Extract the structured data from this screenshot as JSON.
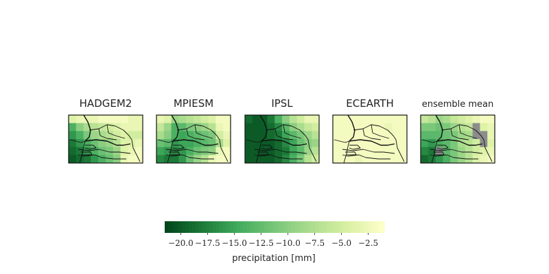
{
  "chart_data": {
    "type": "heatmap",
    "panels": [
      {
        "title": "HADGEM2",
        "grid": [
          [
            -4,
            -3,
            -3,
            -3,
            -2,
            -2,
            -2,
            -2,
            -3,
            -3
          ],
          [
            -14,
            -10,
            -8,
            -7,
            -6,
            -5,
            -4,
            -3,
            -3,
            -3
          ],
          [
            -16,
            -14,
            -11,
            -9,
            -8,
            -7,
            -5,
            -4,
            -5,
            -5
          ],
          [
            -18,
            -16,
            -14,
            -12,
            -10,
            -9,
            -7,
            -4,
            -4,
            -3
          ],
          [
            -19,
            -18,
            -16,
            -14,
            -12,
            -11,
            -9,
            -4,
            -3,
            -2
          ],
          [
            -20,
            -19,
            -18,
            -16,
            -14,
            -12,
            -10,
            -3,
            -2,
            -2
          ]
        ]
      },
      {
        "title": "MPIESM",
        "grid": [
          [
            -3,
            -4,
            -9,
            -8,
            -7,
            -6,
            -5,
            -4,
            -2,
            -2
          ],
          [
            -6,
            -9,
            -14,
            -13,
            -11,
            -10,
            -9,
            -7,
            -3,
            -2
          ],
          [
            -8,
            -10,
            -14,
            -15,
            -14,
            -13,
            -12,
            -11,
            -5,
            -3
          ],
          [
            -12,
            -13,
            -16,
            -15,
            -15,
            -14,
            -13,
            -12,
            -8,
            -4
          ],
          [
            -15,
            -16,
            -17,
            -16,
            -14,
            -12,
            -11,
            -10,
            -3,
            -2
          ],
          [
            -17,
            -18,
            -18,
            -16,
            -12,
            -9,
            -7,
            -3,
            -2,
            -2
          ]
        ]
      },
      {
        "title": "IPSL",
        "grid": [
          [
            -19,
            -20,
            -20,
            -18,
            -14,
            -10,
            -7,
            -5,
            -3,
            -3
          ],
          [
            -20,
            -20,
            -20,
            -19,
            -17,
            -13,
            -10,
            -8,
            -6,
            -5
          ],
          [
            -20,
            -20,
            -20,
            -19,
            -18,
            -15,
            -13,
            -11,
            -9,
            -7
          ],
          [
            -20,
            -20,
            -20,
            -20,
            -19,
            -17,
            -15,
            -12,
            -10,
            -9
          ],
          [
            -20,
            -20,
            -20,
            -20,
            -19,
            -18,
            -15,
            -13,
            -9,
            -7
          ],
          [
            -20,
            -20,
            -20,
            -20,
            -19,
            -17,
            -14,
            -11,
            -7,
            -5
          ]
        ]
      },
      {
        "title": "ECEARTH",
        "grid": [
          [
            -2,
            -2,
            -2,
            -2,
            -2,
            -2,
            -2,
            -2,
            -2,
            -2
          ],
          [
            -2,
            -2,
            -2,
            -2,
            -2,
            -2,
            -2,
            -3,
            -2,
            -2
          ],
          [
            -2,
            -2,
            -2,
            -2,
            -2,
            -2,
            -2,
            -2,
            -2,
            -2
          ],
          [
            -2,
            -2,
            -2,
            -2,
            -2,
            -2,
            -2,
            -2,
            -2,
            -2
          ],
          [
            -2,
            -2,
            -2,
            -2,
            -2,
            -2,
            -2,
            -2,
            -2,
            -2
          ],
          [
            -2,
            -2,
            -2,
            -3,
            -2,
            -2,
            -2,
            -2,
            -2,
            -2
          ]
        ]
      },
      {
        "title": "ensemble mean",
        "grid": [
          [
            -6,
            -7,
            -9,
            -8,
            -6,
            -5,
            -4,
            -3,
            -2,
            -2
          ],
          [
            -11,
            -11,
            -12,
            -11,
            -9,
            -7,
            -6,
            null,
            -4,
            -3
          ],
          [
            -13,
            -13,
            -13,
            -12,
            -11,
            -9,
            -8,
            null,
            null,
            -3
          ],
          [
            -15,
            -16,
            -14,
            -13,
            -11,
            -8,
            -7,
            -5,
            null,
            -4
          ],
          [
            -17,
            -18,
            null,
            -13,
            -11,
            -9,
            -7,
            -5,
            -4,
            -3
          ],
          [
            -19,
            -18,
            -16,
            -14,
            -11,
            -9,
            -7,
            -4,
            -3,
            -2
          ]
        ]
      }
    ],
    "masked_color": "#8c8c8c",
    "colormap": [
      "#00441b",
      "#1b7837",
      "#41ab5d",
      "#78c679",
      "#addd8e",
      "#d9f0a3",
      "#ffffcc"
    ],
    "vmin": -21.5,
    "vmax": -1,
    "colorbar": {
      "ticks": [
        -20.0,
        -17.5,
        -15.0,
        -12.5,
        -10.0,
        -7.5,
        -5.0,
        -2.5
      ],
      "tick_labels": [
        "−20.0",
        "−17.5",
        "−15.0",
        "−12.5",
        "−10.0",
        "−7.5",
        "−5.0",
        "−2.5"
      ],
      "label": "precipitation [mm]"
    }
  }
}
